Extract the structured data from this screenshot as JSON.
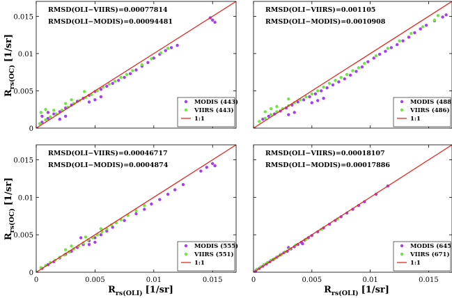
{
  "colors": {
    "modis": "#a63df5",
    "viirs": "#6fe640",
    "one_to_one": "#e8281f"
  },
  "chart_data": [
    {
      "type": "scatter",
      "ylabel_main": "R",
      "ylabel_sub": "rs(OC)",
      "ylabel_unit": "[1/sr]",
      "xlabel_main": "",
      "xlabel_sub": "",
      "xlabel_unit": "",
      "xlim": [
        0,
        0.017
      ],
      "ylim": [
        0,
        0.017
      ],
      "xticks": [],
      "yticks": [
        "0",
        "0.005",
        "0.01",
        "0.015"
      ],
      "annotations": [
        "RMSD(OLI−VIIRS)=0.00077814",
        "RMSD(OLI−MODIS)=0.00094481"
      ],
      "legend": [
        "MODIS (443)",
        "VIIRS (443)",
        "1:1"
      ],
      "legend_position": "bottom-right",
      "series": [
        {
          "name": "MODIS (443)",
          "color": "#a63df5",
          "points": [
            [
              0.0005,
              0.0008
            ],
            [
              0.001,
              0.0013
            ],
            [
              0.0015,
              0.0019
            ],
            [
              0.002,
              0.0022
            ],
            [
              0.0025,
              0.0027
            ],
            [
              0.003,
              0.0031
            ],
            [
              0.0035,
              0.0036
            ],
            [
              0.004,
              0.004
            ],
            [
              0.0045,
              0.0044
            ],
            [
              0.005,
              0.0049
            ],
            [
              0.0055,
              0.0052
            ],
            [
              0.006,
              0.0056
            ],
            [
              0.0065,
              0.006
            ],
            [
              0.007,
              0.0064
            ],
            [
              0.0075,
              0.0068
            ],
            [
              0.008,
              0.0073
            ],
            [
              0.0085,
              0.0078
            ],
            [
              0.009,
              0.0083
            ],
            [
              0.0095,
              0.0088
            ],
            [
              0.01,
              0.0094
            ],
            [
              0.0105,
              0.0099
            ],
            [
              0.011,
              0.0104
            ],
            [
              0.0115,
              0.0108
            ],
            [
              0.012,
              0.0111
            ],
            [
              0.0045,
              0.0035
            ],
            [
              0.005,
              0.0038
            ],
            [
              0.0055,
              0.0042
            ],
            [
              0.002,
              0.0012
            ],
            [
              0.0025,
              0.0016
            ],
            [
              0.001,
              0.0021
            ],
            [
              0.0005,
              0.0016
            ],
            [
              0.0148,
              0.0148
            ],
            [
              0.015,
              0.0145
            ],
            [
              0.0152,
              0.0142
            ]
          ]
        },
        {
          "name": "VIIRS (443)",
          "color": "#6fe640",
          "points": [
            [
              0.0003,
              0.0006
            ],
            [
              0.0008,
              0.0011
            ],
            [
              0.0012,
              0.0015
            ],
            [
              0.0017,
              0.0019
            ],
            [
              0.0022,
              0.0024
            ],
            [
              0.0027,
              0.0028
            ],
            [
              0.0032,
              0.0033
            ],
            [
              0.0037,
              0.0037
            ],
            [
              0.0042,
              0.0041
            ],
            [
              0.0047,
              0.0045
            ],
            [
              0.0052,
              0.005
            ],
            [
              0.0057,
              0.0055
            ],
            [
              0.0062,
              0.0059
            ],
            [
              0.0067,
              0.0063
            ],
            [
              0.0072,
              0.0068
            ],
            [
              0.0077,
              0.0072
            ],
            [
              0.0082,
              0.0077
            ],
            [
              0.009,
              0.0085
            ],
            [
              0.0098,
              0.0093
            ],
            [
              0.0106,
              0.0101
            ],
            [
              0.0112,
              0.0107
            ],
            [
              0.003,
              0.0038
            ],
            [
              0.0025,
              0.0033
            ],
            [
              0.0041,
              0.0049
            ],
            [
              0.0015,
              0.0024
            ],
            [
              0.0008,
              0.0025
            ],
            [
              0.0004,
              0.0021
            ]
          ]
        }
      ]
    },
    {
      "type": "scatter",
      "ylabel_main": "",
      "ylabel_sub": "",
      "ylabel_unit": "",
      "xlabel_main": "",
      "xlabel_sub": "",
      "xlabel_unit": "",
      "xlim": [
        0,
        0.017
      ],
      "ylim": [
        0,
        0.017
      ],
      "xticks": [],
      "yticks": [],
      "annotations": [
        "RMSD(OLI−VIIRS)=0.001105",
        "RMSD(OLI−MODIS)=0.0010908"
      ],
      "legend": [
        "MODIS (488)",
        "VIIRS (486)",
        "1:1"
      ],
      "legend_position": "bottom-right",
      "series": [
        {
          "name": "MODIS (488)",
          "color": "#a63df5",
          "points": [
            [
              0.0008,
              0.0012
            ],
            [
              0.0013,
              0.0016
            ],
            [
              0.0018,
              0.0019
            ],
            [
              0.0023,
              0.0023
            ],
            [
              0.0028,
              0.0027
            ],
            [
              0.0033,
              0.0031
            ],
            [
              0.0038,
              0.0035
            ],
            [
              0.0043,
              0.0038
            ],
            [
              0.0048,
              0.0042
            ],
            [
              0.0053,
              0.0046
            ],
            [
              0.0058,
              0.005
            ],
            [
              0.0063,
              0.0054
            ],
            [
              0.0068,
              0.0058
            ],
            [
              0.0073,
              0.0062
            ],
            [
              0.0078,
              0.0066
            ],
            [
              0.0083,
              0.0071
            ],
            [
              0.0088,
              0.0076
            ],
            [
              0.0093,
              0.0082
            ],
            [
              0.0098,
              0.0089
            ],
            [
              0.0103,
              0.0094
            ],
            [
              0.0108,
              0.0099
            ],
            [
              0.0113,
              0.0103
            ],
            [
              0.0118,
              0.0108
            ],
            [
              0.0123,
              0.0112
            ],
            [
              0.0128,
              0.0117
            ],
            [
              0.0133,
              0.0122
            ],
            [
              0.0138,
              0.0128
            ],
            [
              0.0143,
              0.0133
            ],
            [
              0.0148,
              0.0138
            ],
            [
              0.0155,
              0.0144
            ],
            [
              0.0162,
              0.0149
            ],
            [
              0.0165,
              0.0152
            ],
            [
              0.005,
              0.0034
            ],
            [
              0.0055,
              0.0037
            ],
            [
              0.006,
              0.004
            ],
            [
              0.003,
              0.0018
            ],
            [
              0.0035,
              0.0021
            ]
          ]
        },
        {
          "name": "VIIRS (486)",
          "color": "#6fe640",
          "points": [
            [
              0.0005,
              0.0009
            ],
            [
              0.001,
              0.0013
            ],
            [
              0.0015,
              0.0018
            ],
            [
              0.002,
              0.0022
            ],
            [
              0.0025,
              0.0026
            ],
            [
              0.003,
              0.003
            ],
            [
              0.0035,
              0.0034
            ],
            [
              0.004,
              0.0038
            ],
            [
              0.0045,
              0.0042
            ],
            [
              0.005,
              0.0046
            ],
            [
              0.0055,
              0.005
            ],
            [
              0.006,
              0.0055
            ],
            [
              0.0065,
              0.006
            ],
            [
              0.007,
              0.0064
            ],
            [
              0.0075,
              0.0068
            ],
            [
              0.008,
              0.0072
            ],
            [
              0.0085,
              0.0077
            ],
            [
              0.009,
              0.0081
            ],
            [
              0.0095,
              0.0087
            ],
            [
              0.0105,
              0.0097
            ],
            [
              0.0115,
              0.0107
            ],
            [
              0.0125,
              0.0117
            ],
            [
              0.0135,
              0.0127
            ],
            [
              0.0145,
              0.0136
            ],
            [
              0.0155,
              0.0145
            ],
            [
              0.0158,
              0.0151
            ],
            [
              0.002,
              0.0029
            ],
            [
              0.0015,
              0.0026
            ],
            [
              0.003,
              0.0039
            ],
            [
              0.001,
              0.0022
            ]
          ]
        }
      ]
    },
    {
      "type": "scatter",
      "ylabel_main": "R",
      "ylabel_sub": "rs(OC)",
      "ylabel_unit": "[1/sr]",
      "xlabel_main": "R",
      "xlabel_sub": "rs(OLI)",
      "xlabel_unit": "[1/sr]",
      "xlim": [
        0,
        0.017
      ],
      "ylim": [
        0,
        0.017
      ],
      "xticks": [
        "0",
        "0.005",
        "0.01",
        "0.015"
      ],
      "yticks": [
        "0",
        "0.005",
        "0.01",
        "0.015"
      ],
      "annotations": [
        "RMSD(OLI−VIIRS)=0.00046717",
        "RMSD(OLI−MODIS)=0.0004874"
      ],
      "legend": [
        "MODIS (555)",
        "VIIRS (551)",
        "1:1"
      ],
      "legend_position": "bottom-right",
      "series": [
        {
          "name": "MODIS (555)",
          "color": "#a63df5",
          "points": [
            [
              0.0005,
              0.0005
            ],
            [
              0.001,
              0.001
            ],
            [
              0.0015,
              0.0014
            ],
            [
              0.002,
              0.0019
            ],
            [
              0.0025,
              0.0024
            ],
            [
              0.003,
              0.0028
            ],
            [
              0.0035,
              0.0033
            ],
            [
              0.004,
              0.0037
            ],
            [
              0.0045,
              0.0042
            ],
            [
              0.005,
              0.0046
            ],
            [
              0.0055,
              0.005
            ],
            [
              0.006,
              0.0055
            ],
            [
              0.0065,
              0.006
            ],
            [
              0.0075,
              0.0069
            ],
            [
              0.0085,
              0.0078
            ],
            [
              0.0092,
              0.0084
            ],
            [
              0.0098,
              0.0091
            ],
            [
              0.0105,
              0.0097
            ],
            [
              0.0112,
              0.0104
            ],
            [
              0.0118,
              0.011
            ],
            [
              0.0125,
              0.0117
            ],
            [
              0.014,
              0.0135
            ],
            [
              0.0145,
              0.014
            ],
            [
              0.015,
              0.0145
            ],
            [
              0.0152,
              0.0142
            ],
            [
              0.0045,
              0.0037
            ],
            [
              0.005,
              0.004
            ],
            [
              0.0038,
              0.0046
            ]
          ]
        },
        {
          "name": "VIIRS (551)",
          "color": "#6fe640",
          "points": [
            [
              0.0004,
              0.0006
            ],
            [
              0.0008,
              0.0009
            ],
            [
              0.0012,
              0.0013
            ],
            [
              0.0016,
              0.0016
            ],
            [
              0.002,
              0.002
            ],
            [
              0.0024,
              0.0023
            ],
            [
              0.0028,
              0.0027
            ],
            [
              0.0032,
              0.0031
            ],
            [
              0.0036,
              0.0035
            ],
            [
              0.004,
              0.0039
            ],
            [
              0.0044,
              0.0043
            ],
            [
              0.0048,
              0.0046
            ],
            [
              0.0052,
              0.005
            ],
            [
              0.0056,
              0.0054
            ],
            [
              0.006,
              0.0058
            ],
            [
              0.0064,
              0.0063
            ],
            [
              0.0068,
              0.0066
            ],
            [
              0.0072,
              0.007
            ],
            [
              0.0078,
              0.0076
            ],
            [
              0.0085,
              0.0082
            ],
            [
              0.0092,
              0.0089
            ],
            [
              0.0025,
              0.003
            ],
            [
              0.003,
              0.0035
            ],
            [
              0.0042,
              0.0047
            ],
            [
              0.0055,
              0.0058
            ]
          ]
        }
      ]
    },
    {
      "type": "scatter",
      "ylabel_main": "",
      "ylabel_sub": "",
      "ylabel_unit": "",
      "xlabel_main": "R",
      "xlabel_sub": "rs(OLI)",
      "xlabel_unit": "[1/sr]",
      "xlim": [
        0,
        0.017
      ],
      "ylim": [
        0,
        0.017
      ],
      "xticks": [
        "0",
        "0.005",
        "0.01",
        "0.015"
      ],
      "yticks": [],
      "annotations": [
        "RMSD(OLI−VIIRS)=0.00018107",
        "RMSD(OLI−MODIS)=0.00017886"
      ],
      "legend": [
        "MODIS (645)",
        "VIIRS (671)",
        "1:1"
      ],
      "legend_position": "bottom-right",
      "series": [
        {
          "name": "MODIS (645)",
          "color": "#a63df5",
          "points": [
            [
              0.0002,
              0.0002
            ],
            [
              0.0005,
              0.0005
            ],
            [
              0.0008,
              0.0008
            ],
            [
              0.0011,
              0.0011
            ],
            [
              0.0014,
              0.0014
            ],
            [
              0.0017,
              0.0017
            ],
            [
              0.002,
              0.002
            ],
            [
              0.0023,
              0.0023
            ],
            [
              0.0026,
              0.0026
            ],
            [
              0.0029,
              0.0028
            ],
            [
              0.0032,
              0.0031
            ],
            [
              0.0035,
              0.0034
            ],
            [
              0.0038,
              0.0037
            ],
            [
              0.0041,
              0.004
            ],
            [
              0.0044,
              0.0043
            ],
            [
              0.0047,
              0.0046
            ],
            [
              0.005,
              0.0049
            ],
            [
              0.0055,
              0.0054
            ],
            [
              0.006,
              0.0059
            ],
            [
              0.0065,
              0.0064
            ],
            [
              0.007,
              0.0069
            ],
            [
              0.0075,
              0.0074
            ],
            [
              0.008,
              0.0079
            ],
            [
              0.0085,
              0.0084
            ],
            [
              0.009,
              0.0089
            ],
            [
              0.0095,
              0.0094
            ],
            [
              0.0105,
              0.0104
            ],
            [
              0.0115,
              0.0115
            ],
            [
              0.003,
              0.0033
            ],
            [
              0.0042,
              0.0038
            ]
          ]
        },
        {
          "name": "VIIRS (671)",
          "color": "#6fe640",
          "points": [
            [
              0.0003,
              0.0004
            ],
            [
              0.0006,
              0.0007
            ],
            [
              0.0009,
              0.001
            ],
            [
              0.0012,
              0.0013
            ],
            [
              0.0015,
              0.0016
            ],
            [
              0.0018,
              0.0018
            ],
            [
              0.0021,
              0.0021
            ],
            [
              0.0024,
              0.0024
            ],
            [
              0.0027,
              0.0027
            ],
            [
              0.0031,
              0.0031
            ],
            [
              0.0036,
              0.0036
            ],
            [
              0.0045,
              0.0044
            ],
            [
              0.0058,
              0.0057
            ],
            [
              0.0072,
              0.0071
            ]
          ]
        }
      ]
    }
  ]
}
